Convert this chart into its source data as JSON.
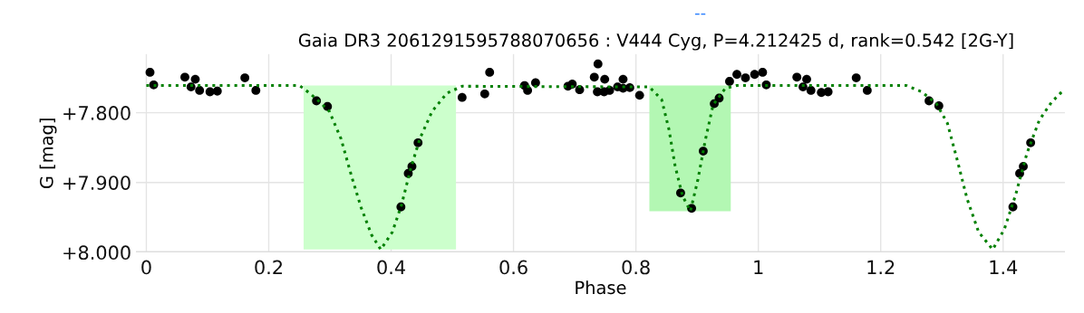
{
  "chart_data": {
    "type": "scatter",
    "title": "Gaia DR3 2061291595788070656 : V444 Cyg, P=4.212425 d, rank=0.542 [2G-Y]",
    "xlabel": "Phase",
    "ylabel": "G [mag]",
    "annotations": [
      "--"
    ],
    "xlim": [
      -0.017,
      1.501
    ],
    "xticks": [
      0,
      0.2,
      0.4,
      0.6,
      0.8,
      1,
      1.2,
      1.4
    ],
    "ylim": [
      8.0,
      7.716
    ],
    "yticks": [
      {
        "value": 7.8,
        "label": "+7.800"
      },
      {
        "value": 7.9,
        "label": "+7.900"
      },
      {
        "value": 8.0,
        "label": "+8.000"
      }
    ],
    "grid": true,
    "legend": false,
    "series": [
      {
        "type": "area",
        "color": "#ccffcc",
        "x": [
          0.257,
          0.257,
          0.506,
          0.506
        ],
        "values": [
          7.996,
          7.761,
          7.761,
          7.996
        ]
      },
      {
        "type": "area",
        "color": "#b3f7b3",
        "x": [
          0.822,
          0.822,
          0.955,
          0.955
        ],
        "values": [
          7.941,
          7.761,
          7.761,
          7.941
        ]
      },
      {
        "type": "line",
        "color": "#008000",
        "line_style": "dotted",
        "marker": "none",
        "x": [
          0,
          0.25,
          0.257,
          0.279,
          0.299,
          0.318,
          0.336,
          0.351,
          0.368,
          0.383,
          0.402,
          0.417,
          0.432,
          0.447,
          0.467,
          0.491,
          0.516,
          0.822,
          0.842,
          0.854,
          0.864,
          0.876,
          0.889,
          0.901,
          0.913,
          0.926,
          0.946,
          0.965,
          1.242,
          1.267,
          1.291,
          1.309,
          1.326,
          1.341,
          1.36,
          1.383,
          1.402,
          1.42,
          1.439,
          1.459,
          1.479,
          1.496
        ],
        "values": [
          7.761,
          7.761,
          7.765,
          7.781,
          7.798,
          7.837,
          7.893,
          7.936,
          7.975,
          7.996,
          7.971,
          7.932,
          7.88,
          7.837,
          7.798,
          7.772,
          7.762,
          7.763,
          7.781,
          7.824,
          7.876,
          7.919,
          7.941,
          7.897,
          7.841,
          7.789,
          7.765,
          7.761,
          7.761,
          7.77,
          7.787,
          7.815,
          7.871,
          7.923,
          7.971,
          7.996,
          7.967,
          7.919,
          7.858,
          7.811,
          7.785,
          7.77
        ]
      },
      {
        "color": "#000000",
        "marker": "circle",
        "x": [
          0.006,
          0.012,
          0.063,
          0.08,
          0.073,
          0.087,
          0.104,
          0.116,
          0.161,
          0.179,
          0.278,
          0.296,
          0.444,
          0.434,
          0.428,
          0.416,
          0.516,
          0.553,
          0.561,
          0.618,
          0.623,
          0.636,
          0.689,
          0.696,
          0.708,
          0.738,
          0.732,
          0.749,
          0.737,
          0.748,
          0.757,
          0.77,
          0.779,
          0.779,
          0.79,
          0.806,
          0.873,
          0.891,
          0.91,
          0.928,
          0.936,
          0.953,
          0.965,
          0.979,
          0.994,
          1.007,
          1.013,
          1.063,
          1.079,
          1.073,
          1.086,
          1.103,
          1.114,
          1.16,
          1.178,
          1.279,
          1.295,
          1.445,
          1.433,
          1.427,
          1.416
        ],
        "values": [
          7.742,
          7.76,
          7.749,
          7.752,
          7.763,
          7.768,
          7.77,
          7.769,
          7.75,
          7.768,
          7.783,
          7.791,
          7.843,
          7.877,
          7.887,
          7.935,
          7.778,
          7.773,
          7.742,
          7.761,
          7.768,
          7.757,
          7.762,
          7.759,
          7.767,
          7.73,
          7.749,
          7.752,
          7.77,
          7.77,
          7.768,
          7.763,
          7.752,
          7.765,
          7.764,
          7.775,
          7.915,
          7.937,
          7.855,
          7.787,
          7.779,
          7.755,
          7.745,
          7.75,
          7.745,
          7.742,
          7.76,
          7.749,
          7.752,
          7.763,
          7.768,
          7.771,
          7.77,
          7.75,
          7.768,
          7.783,
          7.79,
          7.843,
          7.877,
          7.887,
          7.935
        ]
      }
    ]
  }
}
